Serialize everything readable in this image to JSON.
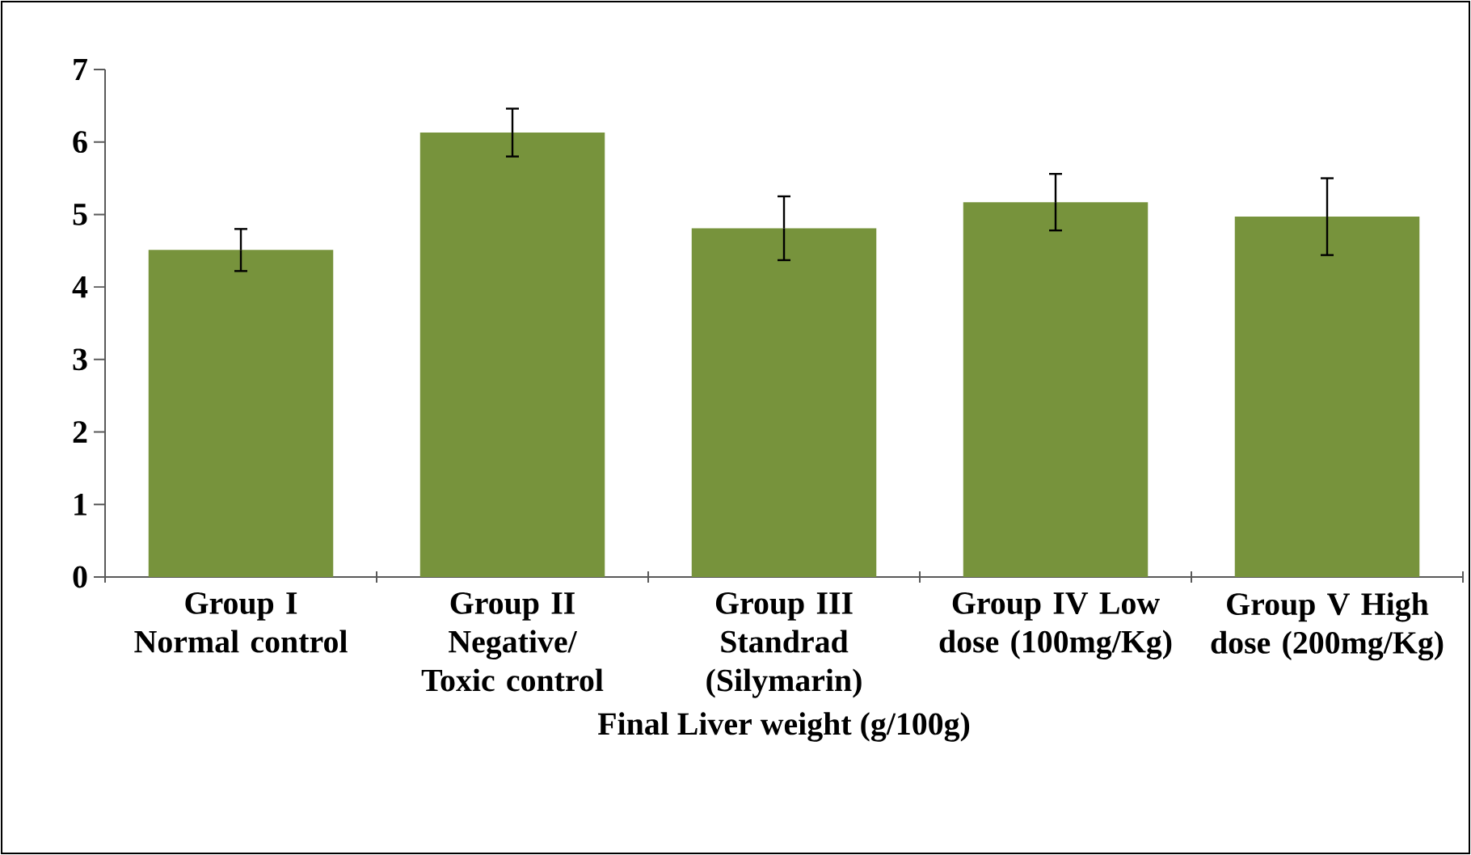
{
  "chart_data": {
    "type": "bar",
    "xlabel": "Final Liver weight (g/100g)",
    "categories": [
      "Group I Normal control",
      "Group II Negative/ Toxic control",
      "Group III Standrad (Silymarin)",
      "Group IV Low dose (100mg/Kg)",
      "Group V High dose (200mg/Kg)"
    ],
    "values": [
      4.51,
      6.13,
      4.81,
      5.17,
      4.97
    ],
    "errors": [
      0.29,
      0.33,
      0.44,
      0.39,
      0.53
    ],
    "color": "#77933c",
    "ylim": [
      0,
      7
    ],
    "yticks": [
      0,
      1,
      2,
      3,
      4,
      5,
      6,
      7
    ]
  }
}
